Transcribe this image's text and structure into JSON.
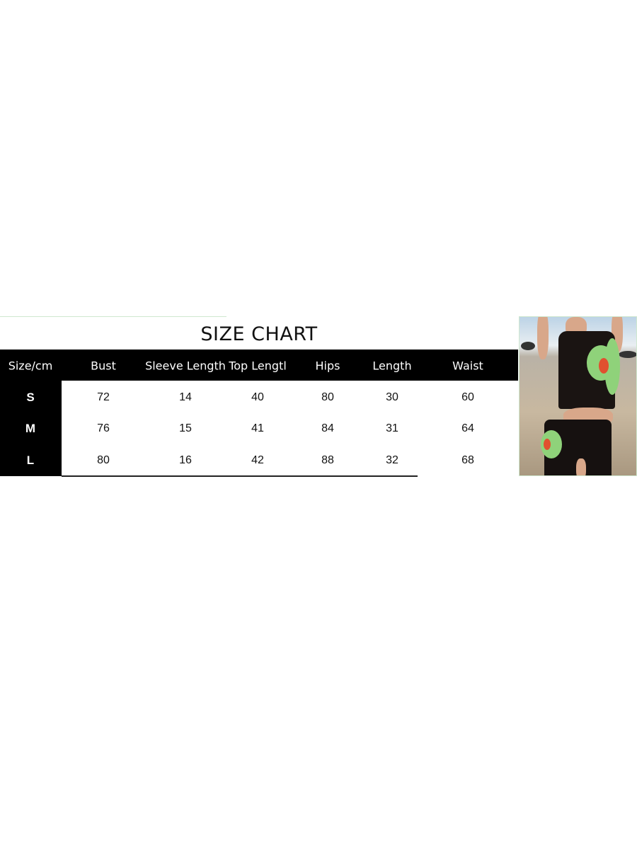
{
  "title": "SIZE CHART",
  "table": {
    "headers": [
      "Size/cm",
      "Bust",
      "Sleeve Length",
      "Top Lengtl",
      "Hips",
      "Length",
      "Waist"
    ],
    "rows": [
      {
        "size": "S",
        "values": [
          "72",
          "14",
          "40",
          "80",
          "30",
          "60"
        ]
      },
      {
        "size": "M",
        "values": [
          "76",
          "15",
          "41",
          "84",
          "31",
          "64"
        ]
      },
      {
        "size": "L",
        "values": [
          "80",
          "16",
          "42",
          "88",
          "32",
          "68"
        ]
      }
    ]
  },
  "colors": {
    "header_bg": "#000000",
    "accent": "#8fd27a"
  }
}
